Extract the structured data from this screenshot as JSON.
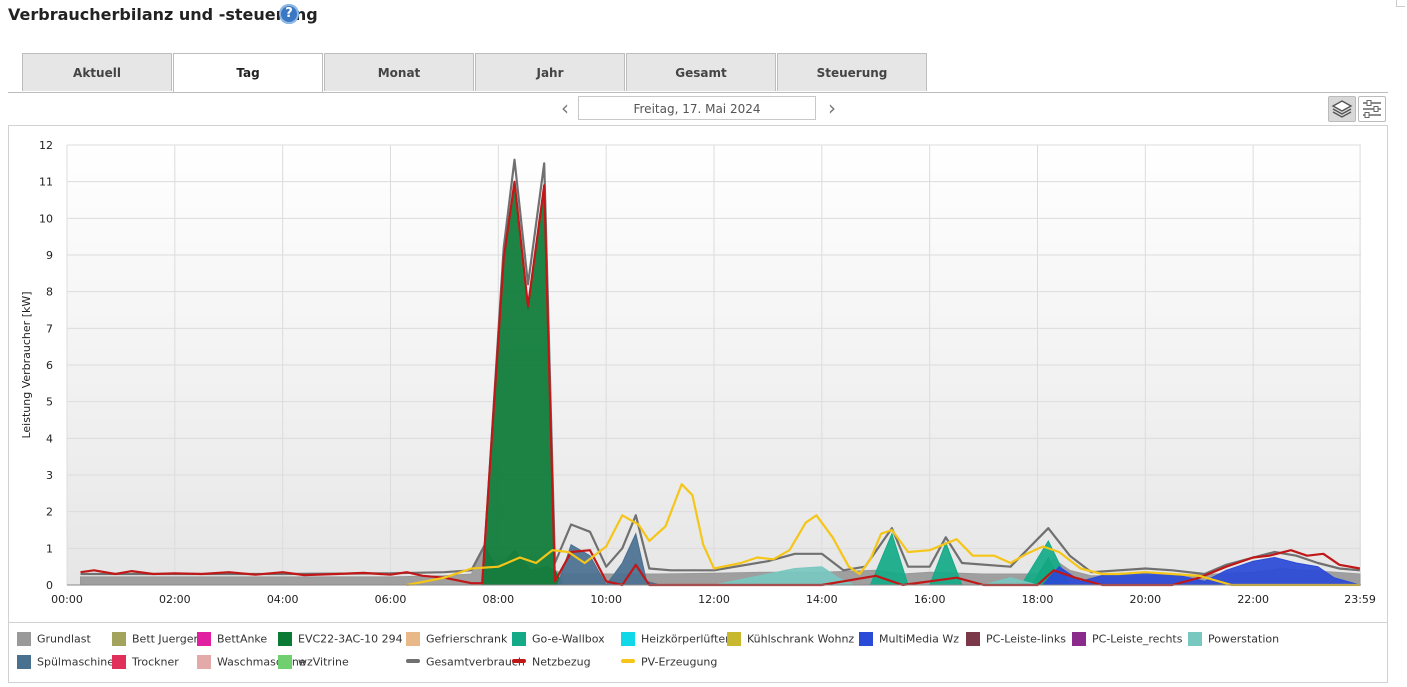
{
  "page": {
    "title": "Verbraucherbilanz und -steuerung",
    "help_icon": "help-icon"
  },
  "tabs": [
    {
      "label": "Aktuell",
      "active": false
    },
    {
      "label": "Tag",
      "active": true
    },
    {
      "label": "Monat",
      "active": false
    },
    {
      "label": "Jahr",
      "active": false
    },
    {
      "label": "Gesamt",
      "active": false
    },
    {
      "label": "Steuerung",
      "active": false
    }
  ],
  "date_nav": {
    "prev_icon": "chevron-left-icon",
    "next_icon": "chevron-right-icon",
    "date": "Freitag, 17. Mai 2024"
  },
  "toolbar": {
    "stack_icon": "layers-icon",
    "settings_icon": "sliders-icon"
  },
  "chart_data": {
    "type": "area",
    "ylabel": "Leistung Verbraucher [kW]",
    "ylim": [
      0,
      12
    ],
    "yticks": [
      "0",
      "1",
      "2",
      "3",
      "4",
      "5",
      "6",
      "7",
      "8",
      "9",
      "10",
      "11",
      "12"
    ],
    "xlim": [
      0,
      24
    ],
    "xtick_values": [
      0,
      2,
      4,
      6,
      8,
      10,
      12,
      14,
      16,
      18,
      20,
      22,
      23.983
    ],
    "xticks": [
      "00:00",
      "02:00",
      "04:00",
      "06:00",
      "08:00",
      "10:00",
      "12:00",
      "14:00",
      "16:00",
      "18:00",
      "20:00",
      "22:00",
      "23:59"
    ],
    "grid": true,
    "series": [
      {
        "name": "Grundlast",
        "kind": "area",
        "color": "#999999",
        "points": [
          [
            0.25,
            0.22
          ],
          [
            2,
            0.22
          ],
          [
            4,
            0.22
          ],
          [
            6,
            0.22
          ],
          [
            7,
            0.25
          ],
          [
            7.5,
            0.3
          ],
          [
            7.75,
            1.05
          ],
          [
            8,
            0.4
          ],
          [
            8.3,
            0.95
          ],
          [
            8.6,
            0.4
          ],
          [
            8.9,
            0.5
          ],
          [
            9.2,
            0.3
          ],
          [
            10,
            0.3
          ],
          [
            11,
            0.3
          ],
          [
            12,
            0.32
          ],
          [
            13,
            0.35
          ],
          [
            14,
            0.35
          ],
          [
            15,
            0.4
          ],
          [
            15.5,
            0.3
          ],
          [
            16,
            0.35
          ],
          [
            17,
            0.3
          ],
          [
            18,
            0.3
          ],
          [
            18.3,
            0.7
          ],
          [
            18.6,
            0.4
          ],
          [
            19,
            0.25
          ],
          [
            20,
            0.25
          ],
          [
            21,
            0.28
          ],
          [
            22,
            0.35
          ],
          [
            22.5,
            0.45
          ],
          [
            23,
            0.4
          ],
          [
            23.98,
            0.3
          ]
        ]
      },
      {
        "name": "Bett Juergen",
        "kind": "area",
        "color": "#a3a35e",
        "points": []
      },
      {
        "name": "BettAnke",
        "kind": "area",
        "color": "#e020a0",
        "points": []
      },
      {
        "name": "EVC22-3AC-10 294",
        "kind": "area",
        "color": "#0a7a35",
        "points": [
          [
            7.5,
            0
          ],
          [
            7.7,
            0
          ],
          [
            8.1,
            8.9
          ],
          [
            8.3,
            10.9
          ],
          [
            8.55,
            7.5
          ],
          [
            8.85,
            10.8
          ],
          [
            9.05,
            0.4
          ],
          [
            9.2,
            0
          ],
          [
            17.9,
            0
          ],
          [
            18.2,
            0.75
          ],
          [
            18.45,
            0
          ]
        ]
      },
      {
        "name": "Gefrierschrank",
        "kind": "area",
        "color": "#e8b888",
        "points": []
      },
      {
        "name": "Go-e-Wallbox",
        "kind": "area",
        "color": "#14aa88",
        "points": [
          [
            14.9,
            0
          ],
          [
            15.3,
            1.4
          ],
          [
            15.6,
            0
          ],
          [
            16.0,
            0
          ],
          [
            16.3,
            1.15
          ],
          [
            16.6,
            0
          ],
          [
            17.7,
            0
          ],
          [
            18.2,
            1.2
          ],
          [
            18.6,
            0
          ]
        ]
      },
      {
        "name": "Heizkörperlüfter",
        "kind": "area",
        "color": "#10d8e8",
        "points": []
      },
      {
        "name": "Kühlschrank Wohnz",
        "kind": "area",
        "color": "#c8b830",
        "points": []
      },
      {
        "name": "MultiMedia Wz",
        "kind": "area",
        "color": "#2a4ad8",
        "points": [
          [
            18.1,
            0
          ],
          [
            18.4,
            0.5
          ],
          [
            18.8,
            0.1
          ],
          [
            19.3,
            0.3
          ],
          [
            20,
            0.35
          ],
          [
            20.5,
            0.3
          ],
          [
            21.1,
            0.1
          ],
          [
            21.5,
            0.4
          ],
          [
            22,
            0.65
          ],
          [
            22.4,
            0.75
          ],
          [
            22.8,
            0.6
          ],
          [
            23.2,
            0.5
          ],
          [
            23.5,
            0.2
          ],
          [
            23.98,
            0
          ]
        ]
      },
      {
        "name": "PC-Leiste-links",
        "kind": "area",
        "color": "#7a3848",
        "points": []
      },
      {
        "name": "PC-Leiste_rechts",
        "kind": "area",
        "color": "#8a2a8a",
        "points": []
      },
      {
        "name": "Powerstation",
        "kind": "area",
        "color": "#78c8c0",
        "points": [
          [
            12,
            0
          ],
          [
            13,
            0.3
          ],
          [
            13.5,
            0.45
          ],
          [
            14,
            0.5
          ],
          [
            14.3,
            0.2
          ],
          [
            14.6,
            0
          ],
          [
            17,
            0
          ],
          [
            17.5,
            0.2
          ],
          [
            18,
            0
          ]
        ]
      },
      {
        "name": "Spülmaschine",
        "kind": "area",
        "color": "#4a7090",
        "points": [
          [
            9.1,
            0
          ],
          [
            9.35,
            1.1
          ],
          [
            9.7,
            0.8
          ],
          [
            10,
            0
          ],
          [
            10.3,
            0.6
          ],
          [
            10.55,
            1.4
          ],
          [
            10.75,
            0.1
          ],
          [
            11,
            0
          ]
        ]
      },
      {
        "name": "Trockner",
        "kind": "area",
        "color": "#e0305a",
        "points": []
      },
      {
        "name": "Waschmaschine",
        "kind": "area",
        "color": "#e4aaaa",
        "points": []
      },
      {
        "name": "wzVitrine",
        "kind": "area",
        "color": "#70d070",
        "points": []
      },
      {
        "name": "Gesamtverbrauch",
        "kind": "line",
        "color": "#707070",
        "points": [
          [
            0.25,
            0.3
          ],
          [
            2,
            0.3
          ],
          [
            4,
            0.3
          ],
          [
            6,
            0.32
          ],
          [
            7,
            0.35
          ],
          [
            7.5,
            0.4
          ],
          [
            7.75,
            1.1
          ],
          [
            8.1,
            9.2
          ],
          [
            8.3,
            11.6
          ],
          [
            8.55,
            8.2
          ],
          [
            8.85,
            11.5
          ],
          [
            9.05,
            0.6
          ],
          [
            9.35,
            1.65
          ],
          [
            9.7,
            1.45
          ],
          [
            10,
            0.5
          ],
          [
            10.3,
            1.0
          ],
          [
            10.55,
            1.9
          ],
          [
            10.8,
            0.45
          ],
          [
            11.2,
            0.4
          ],
          [
            12,
            0.4
          ],
          [
            13,
            0.65
          ],
          [
            13.5,
            0.85
          ],
          [
            14,
            0.85
          ],
          [
            14.4,
            0.4
          ],
          [
            14.8,
            0.5
          ],
          [
            15.3,
            1.55
          ],
          [
            15.6,
            0.5
          ],
          [
            16.0,
            0.5
          ],
          [
            16.3,
            1.3
          ],
          [
            16.6,
            0.6
          ],
          [
            17.5,
            0.5
          ],
          [
            18.2,
            1.55
          ],
          [
            18.6,
            0.8
          ],
          [
            19,
            0.35
          ],
          [
            20,
            0.45
          ],
          [
            20.5,
            0.4
          ],
          [
            21.1,
            0.3
          ],
          [
            21.5,
            0.55
          ],
          [
            22,
            0.75
          ],
          [
            22.4,
            0.9
          ],
          [
            22.8,
            0.8
          ],
          [
            23.2,
            0.6
          ],
          [
            23.6,
            0.45
          ],
          [
            23.98,
            0.4
          ]
        ]
      },
      {
        "name": "Netzbezug",
        "kind": "line",
        "color": "#c01818",
        "points": [
          [
            0.25,
            0.35
          ],
          [
            0.5,
            0.4
          ],
          [
            0.9,
            0.3
          ],
          [
            1.2,
            0.38
          ],
          [
            1.6,
            0.3
          ],
          [
            2,
            0.32
          ],
          [
            2.5,
            0.3
          ],
          [
            3,
            0.35
          ],
          [
            3.5,
            0.28
          ],
          [
            4,
            0.35
          ],
          [
            4.4,
            0.27
          ],
          [
            5,
            0.3
          ],
          [
            5.5,
            0.33
          ],
          [
            6,
            0.28
          ],
          [
            6.3,
            0.35
          ],
          [
            6.6,
            0.25
          ],
          [
            7,
            0.2
          ],
          [
            7.5,
            0.05
          ],
          [
            7.7,
            0.05
          ],
          [
            8.1,
            8.9
          ],
          [
            8.3,
            11.0
          ],
          [
            8.55,
            7.6
          ],
          [
            8.85,
            10.9
          ],
          [
            9.05,
            0.1
          ],
          [
            9.35,
            0.9
          ],
          [
            9.7,
            0.95
          ],
          [
            10,
            0.1
          ],
          [
            10.3,
            0
          ],
          [
            10.55,
            0.55
          ],
          [
            10.8,
            0
          ],
          [
            12,
            0
          ],
          [
            13,
            0
          ],
          [
            14,
            0
          ],
          [
            15,
            0.25
          ],
          [
            15.5,
            0
          ],
          [
            16.5,
            0.2
          ],
          [
            17,
            0
          ],
          [
            18,
            0
          ],
          [
            18.3,
            0.4
          ],
          [
            18.7,
            0.2
          ],
          [
            19.2,
            0
          ],
          [
            20.5,
            0
          ],
          [
            21,
            0.2
          ],
          [
            21.5,
            0.5
          ],
          [
            22,
            0.75
          ],
          [
            22.3,
            0.8
          ],
          [
            22.7,
            0.95
          ],
          [
            23,
            0.8
          ],
          [
            23.3,
            0.85
          ],
          [
            23.6,
            0.55
          ],
          [
            23.98,
            0.45
          ]
        ]
      },
      {
        "name": "PV-Erzeugung",
        "kind": "line",
        "color": "#f5c518",
        "points": [
          [
            6.3,
            0
          ],
          [
            7,
            0.2
          ],
          [
            7.5,
            0.45
          ],
          [
            8,
            0.5
          ],
          [
            8.4,
            0.75
          ],
          [
            8.7,
            0.6
          ],
          [
            9,
            0.95
          ],
          [
            9.3,
            0.9
          ],
          [
            9.6,
            0.6
          ],
          [
            10,
            1.05
          ],
          [
            10.3,
            1.9
          ],
          [
            10.6,
            1.65
          ],
          [
            10.8,
            1.2
          ],
          [
            11.1,
            1.6
          ],
          [
            11.4,
            2.75
          ],
          [
            11.6,
            2.45
          ],
          [
            11.8,
            1.1
          ],
          [
            12,
            0.45
          ],
          [
            12.5,
            0.6
          ],
          [
            12.8,
            0.75
          ],
          [
            13.1,
            0.7
          ],
          [
            13.4,
            0.95
          ],
          [
            13.7,
            1.7
          ],
          [
            13.9,
            1.9
          ],
          [
            14.2,
            1.3
          ],
          [
            14.5,
            0.5
          ],
          [
            14.7,
            0.3
          ],
          [
            14.9,
            0.7
          ],
          [
            15.1,
            1.4
          ],
          [
            15.3,
            1.5
          ],
          [
            15.6,
            0.9
          ],
          [
            16,
            0.95
          ],
          [
            16.5,
            1.25
          ],
          [
            16.8,
            0.8
          ],
          [
            17.2,
            0.8
          ],
          [
            17.5,
            0.6
          ],
          [
            17.8,
            0.85
          ],
          [
            18.1,
            1.05
          ],
          [
            18.4,
            0.9
          ],
          [
            18.8,
            0.45
          ],
          [
            19.2,
            0.3
          ],
          [
            19.5,
            0.3
          ],
          [
            20,
            0.35
          ],
          [
            20.5,
            0.3
          ],
          [
            21,
            0.25
          ],
          [
            21.6,
            0
          ],
          [
            23.98,
            0
          ]
        ]
      }
    ]
  }
}
